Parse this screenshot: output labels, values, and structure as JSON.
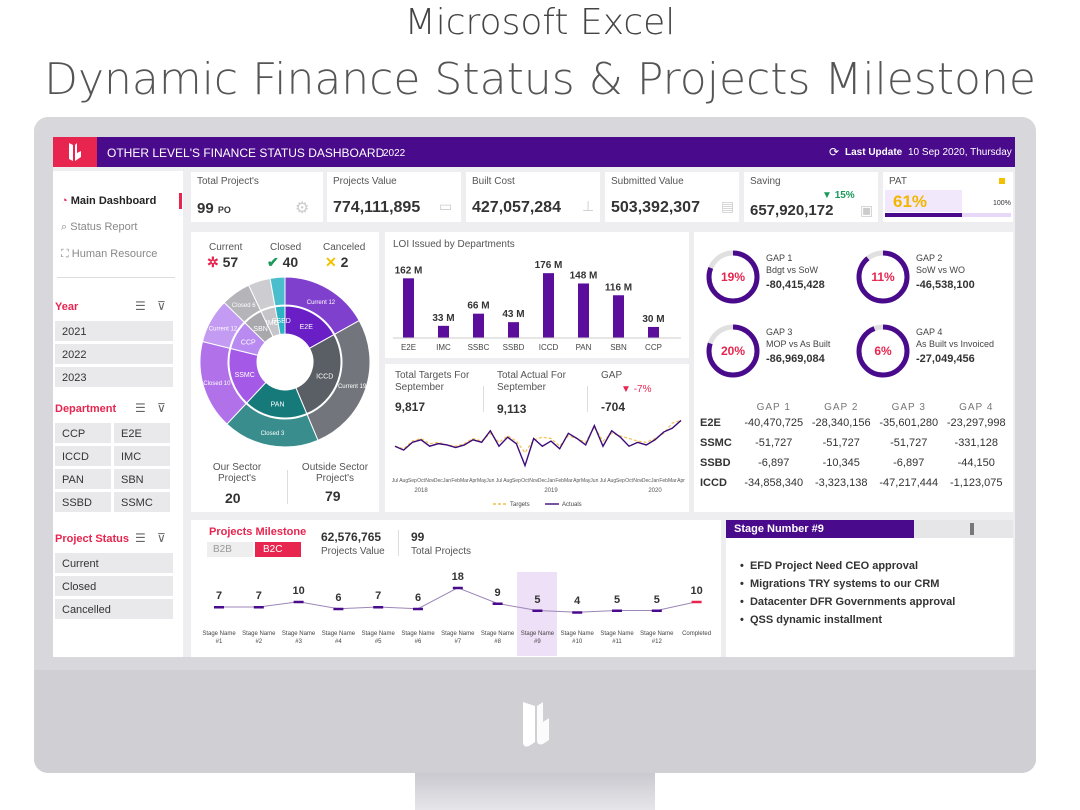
{
  "hero": {
    "line1": "Microsoft Excel",
    "line2": "Dynamic Finance Status & Projects Milestone"
  },
  "header": {
    "title": "OTHER LEVEL'S FINANCE STATUS DASHBOARD",
    "year": "2022",
    "last_update_label": "Last Update",
    "last_update_value": "10 Sep 2020, Thursday"
  },
  "nav": {
    "items": [
      "Main Dashboard",
      "Status Report",
      "Human Resource"
    ]
  },
  "filters": {
    "year_title": "Year",
    "years": [
      "2021",
      "2022",
      "2023"
    ],
    "dept_title": "Department",
    "departments": [
      "CCP",
      "E2E",
      "ICCD",
      "IMC",
      "PAN",
      "SBN",
      "SSBD",
      "SSMC"
    ],
    "status_title": "Project Status",
    "statuses": [
      "Current",
      "Closed",
      "Cancelled"
    ]
  },
  "kpis": {
    "total_projects": {
      "label": "Total Project's",
      "value": "99",
      "unit": "PO"
    },
    "projects_value": {
      "label": "Projects Value",
      "value": "774,111,895"
    },
    "built_cost": {
      "label": "Built Cost",
      "value": "427,057,284"
    },
    "submitted_value": {
      "label": "Submitted Value",
      "value": "503,392,307"
    },
    "saving": {
      "label": "Saving",
      "value": "657,920,172",
      "pct": "15%"
    },
    "pat": {
      "label": "PAT",
      "value": "61%",
      "max": "100%",
      "fill": 0.61
    }
  },
  "status_counts": {
    "current_label": "Current",
    "current": "57",
    "closed_label": "Closed",
    "closed": "40",
    "canceled_label": "Canceled",
    "canceled": "2"
  },
  "sector": {
    "our_label1": "Our Sector",
    "our_label2": "Project's",
    "our_value": "20",
    "outside_label1": "Outside Sector",
    "outside_label2": "Project's",
    "outside_value": "79"
  },
  "sunburst": {
    "inner": [
      {
        "name": "E2E",
        "value": 12,
        "color": "#6a1fc6"
      },
      {
        "name": "ICCD",
        "value": 19,
        "color": "#5a5f66"
      },
      {
        "name": "PAN",
        "value": 13,
        "color": "#177a7a"
      },
      {
        "name": "SSMC",
        "value": 12,
        "color": "#a45ae6"
      },
      {
        "name": "CCP",
        "value": 6,
        "color": "#b98af0"
      },
      {
        "name": "SBN",
        "value": 4,
        "color": "#a8a8ad"
      },
      {
        "name": "IMC",
        "value": 3,
        "color": "#c5c5c9"
      },
      {
        "name": "SSBD",
        "value": 2,
        "color": "#2bb3c4"
      }
    ],
    "outer_labels": [
      "Current 12",
      "Current 19",
      "Closed 3",
      "Closed 10",
      "Current 12",
      "Closed 6",
      "Current",
      "Current"
    ]
  },
  "loi": {
    "title": "LOI Issued by Departments",
    "chart_data": {
      "type": "bar",
      "categories": [
        "E2E",
        "IMC",
        "SSBC",
        "SSBD",
        "ICCD",
        "PAN",
        "SBN",
        "CCP"
      ],
      "values": [
        162,
        33,
        66,
        43,
        176,
        148,
        116,
        30
      ],
      "labels": [
        "162 M",
        "33 M",
        "66 M",
        "43 M",
        "176 M",
        "148 M",
        "116 M",
        "30 M"
      ],
      "color": "#5b0e9c"
    }
  },
  "targets": {
    "t_label1": "Total Targets For",
    "t_label2": "September",
    "t_value": "9,817",
    "a_label1": "Total Actual For",
    "a_label2": "September",
    "a_value": "9,113",
    "gap_label": "GAP",
    "gap_pct": "-7%",
    "gap_value": "-704",
    "chart_data": {
      "type": "line",
      "x": [
        "Jul",
        "Aug",
        "Sep",
        "Oct",
        "Nov",
        "Dec",
        "Jan",
        "Feb",
        "Mar",
        "Apr",
        "May",
        "Jun",
        "Jul",
        "Aug",
        "Sep",
        "Oct",
        "Nov",
        "Dec",
        "Jan",
        "Feb",
        "Mar",
        "Apr",
        "May",
        "Jun",
        "Jul",
        "Aug",
        "Sep",
        "Oct",
        "Nov",
        "Dec",
        "Jan",
        "Feb",
        "Mar",
        "Apr"
      ],
      "years": [
        "2018",
        "2019",
        "2020"
      ],
      "series": [
        {
          "name": "Targets",
          "color": "#f2c14e",
          "values": [
            30,
            28,
            34,
            36,
            32,
            33,
            31,
            30,
            32,
            36,
            34,
            40,
            33,
            38,
            34,
            25,
            35,
            37,
            36,
            30,
            38,
            36,
            33,
            45,
            34,
            40,
            38,
            36,
            34,
            33,
            36,
            40,
            48,
            50
          ]
        },
        {
          "name": "Actuals",
          "color": "#3c0a7a",
          "values": [
            30,
            27,
            33,
            35,
            30,
            32,
            31,
            29,
            31,
            35,
            33,
            42,
            30,
            37,
            32,
            15,
            36,
            30,
            34,
            28,
            40,
            36,
            31,
            46,
            30,
            42,
            37,
            30,
            33,
            31,
            35,
            41,
            44,
            50
          ]
        }
      ]
    }
  },
  "gaps": [
    {
      "title": "GAP 1",
      "sub": "Bdgt vs SoW",
      "pct": "19%",
      "value": "-80,415,428",
      "fill": 0.81
    },
    {
      "title": "GAP 2",
      "sub": "SoW vs WO",
      "pct": "11%",
      "value": "-46,538,100",
      "fill": 0.89
    },
    {
      "title": "GAP 3",
      "sub": "MOP vs As Built",
      "pct": "20%",
      "value": "-86,969,084",
      "fill": 0.8
    },
    {
      "title": "GAP 4",
      "sub": "As Built vs Invoiced",
      "pct": "6%",
      "value": "-27,049,456",
      "fill": 0.94
    }
  ],
  "gap_table": {
    "headers": [
      "GAP 1",
      "GAP 2",
      "GAP 3",
      "GAP 4"
    ],
    "rows": [
      {
        "name": "E2E",
        "cells": [
          "-40,470,725",
          "-28,340,156",
          "-35,601,280",
          "-23,297,998"
        ]
      },
      {
        "name": "SSMC",
        "cells": [
          "-51,727",
          "-51,727",
          "-51,727",
          "-331,128"
        ]
      },
      {
        "name": "SSBD",
        "cells": [
          "-6,897",
          "-10,345",
          "-6,897",
          "-44,150"
        ]
      },
      {
        "name": "ICCD",
        "cells": [
          "-34,858,340",
          "-3,323,138",
          "-47,217,444",
          "-1,123,075"
        ]
      }
    ]
  },
  "milestone": {
    "title": "Projects Milestone",
    "tab_b2b": "B2B",
    "tab_b2c": "B2C",
    "value": "62,576,765",
    "value_label": "Projects Value",
    "total": "99",
    "total_label": "Total Projects",
    "stages": [
      {
        "line1": "Stage Name",
        "line2": "#1",
        "value": "7",
        "n": 7
      },
      {
        "line1": "Stage Name",
        "line2": "#2",
        "value": "7",
        "n": 7
      },
      {
        "line1": "Stage Name",
        "line2": "#3",
        "value": "10",
        "n": 10
      },
      {
        "line1": "Stage Name",
        "line2": "#4",
        "value": "6",
        "n": 6
      },
      {
        "line1": "Stage Name",
        "line2": "#5",
        "value": "7",
        "n": 7
      },
      {
        "line1": "Stage Name",
        "line2": "#6",
        "value": "6",
        "n": 6
      },
      {
        "line1": "Stage Name",
        "line2": "#7",
        "value": "18",
        "n": 18
      },
      {
        "line1": "Stage Name",
        "line2": "#8",
        "value": "9",
        "n": 9
      },
      {
        "line1": "Stage Name",
        "line2": "#9",
        "value": "5",
        "n": 5
      },
      {
        "line1": "Stage Name",
        "line2": "#10",
        "value": "4",
        "n": 4
      },
      {
        "line1": "Stage Name",
        "line2": "#11",
        "value": "5",
        "n": 5
      },
      {
        "line1": "Stage Name",
        "line2": "#12",
        "value": "5",
        "n": 5
      },
      {
        "line1": "Completed",
        "line2": "",
        "value": "10",
        "n": 10
      }
    ],
    "selected_index": 8
  },
  "stage_panel": {
    "title": "Stage Number #9",
    "bullets": [
      "EFD Project Need CEO approval",
      "Migrations TRY systems to our CRM",
      "Datacenter DFR Governments approval",
      "QSS dynamic installment"
    ]
  },
  "colors": {
    "purple": "#4a0a8c",
    "red": "#e8254f",
    "teal": "#177a7a",
    "yellow": "#f2c200"
  }
}
